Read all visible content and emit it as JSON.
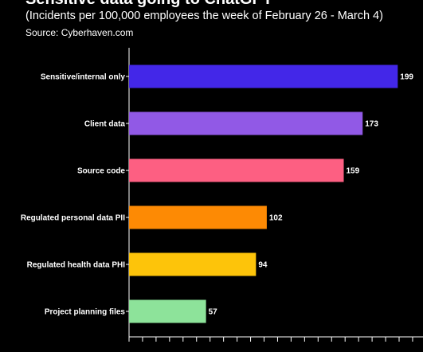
{
  "header": {
    "title": "Sensitive data going to ChatGPT",
    "subtitle": "(Incidents per 100,000 employees the week of February 26 - March 4)",
    "source": "Source: Cyberhaven.com"
  },
  "chart_data": {
    "type": "bar",
    "orientation": "horizontal",
    "categories": [
      "Sensitive/internal only",
      "Client data",
      "Source code",
      "Regulated personal data PII",
      "Regulated health data PHI",
      "Project planning files"
    ],
    "values": [
      199,
      173,
      159,
      102,
      94,
      57
    ],
    "data_labels": [
      "199",
      "173",
      "159",
      "102",
      "94",
      "57"
    ],
    "colors": [
      "#4327e8",
      "#9159e6",
      "#fd5f82",
      "#fd8a04",
      "#fdc40a",
      "#8de39a"
    ],
    "xlim": [
      0,
      200
    ],
    "title": "",
    "xlabel": "",
    "ylabel": "",
    "grid": false,
    "legend": "none"
  }
}
